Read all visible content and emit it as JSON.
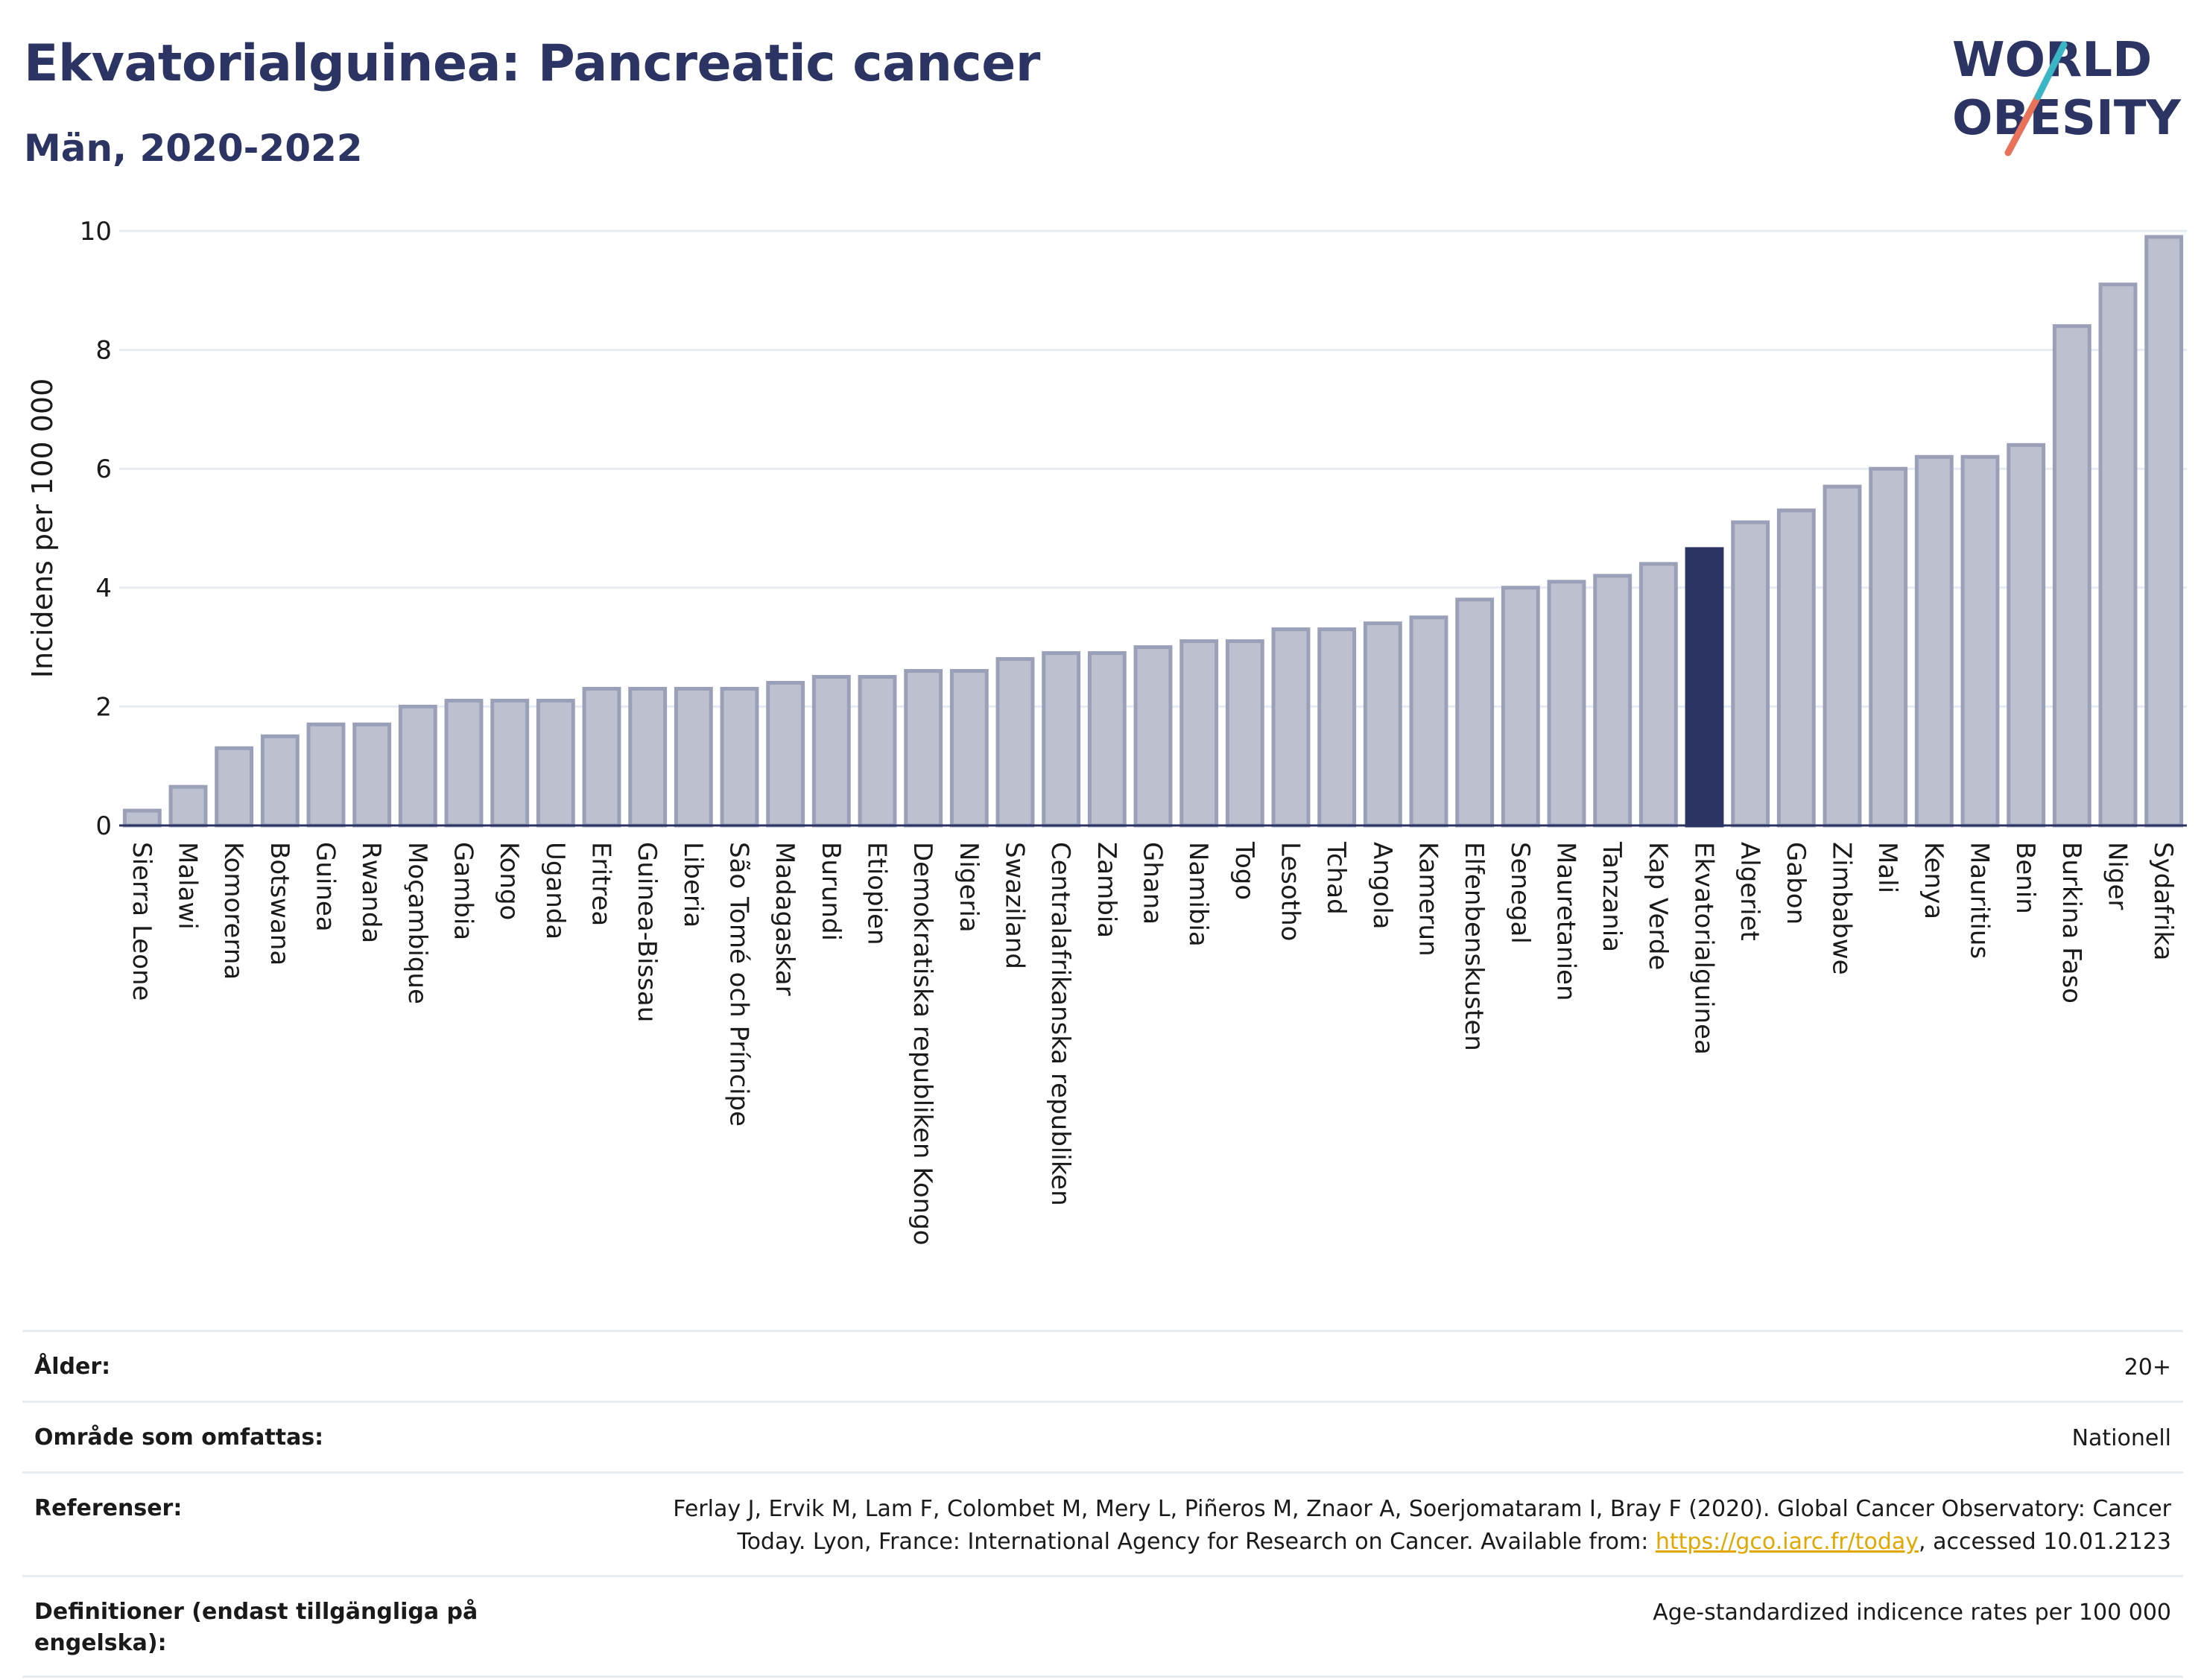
{
  "header": {
    "title": "Ekvatorialguinea: Pancreatic cancer",
    "subtitle": "Män, 2020-2022",
    "logo_line1": "WORLD",
    "logo_line2": "OBESITY"
  },
  "colors": {
    "bar_default": "#bcc0cf",
    "bar_border": "#9aa0b8",
    "bar_highlight": "#2b3462",
    "title": "#2b3462",
    "grid": "#e6ecf2"
  },
  "chart_data": {
    "type": "bar",
    "title": "Ekvatorialguinea: Pancreatic cancer",
    "subtitle": "Män, 2020-2022",
    "xlabel": "",
    "ylabel": "Incidens per 100 000",
    "ylim": [
      0,
      10
    ],
    "yticks": [
      0,
      2,
      4,
      6,
      8,
      10
    ],
    "grid": true,
    "highlight": "Ekvatorialguinea",
    "categories": [
      "Sierra Leone",
      "Malawi",
      "Komorerna",
      "Botswana",
      "Guinea",
      "Rwanda",
      "Moçambique",
      "Gambia",
      "Kongo",
      "Uganda",
      "Eritrea",
      "Guinea-Bissau",
      "Liberia",
      "São Tomé och Príncipe",
      "Madagaskar",
      "Burundi",
      "Etiopien",
      "Demokratiska republiken Kongo",
      "Nigeria",
      "Swaziland",
      "Centralafrikanska republiken",
      "Zambia",
      "Ghana",
      "Namibia",
      "Togo",
      "Lesotho",
      "Tchad",
      "Angola",
      "Kamerun",
      "Elfenbenskusten",
      "Senegal",
      "Mauretanien",
      "Tanzania",
      "Kap Verde",
      "Ekvatorialguinea",
      "Algeriet",
      "Gabon",
      "Zimbabwe",
      "Mali",
      "Kenya",
      "Mauritius",
      "Benin",
      "Burkina Faso",
      "Niger",
      "Sydafrika"
    ],
    "values": [
      0.25,
      0.65,
      1.3,
      1.5,
      1.7,
      1.7,
      2.0,
      2.1,
      2.1,
      2.1,
      2.3,
      2.3,
      2.3,
      2.3,
      2.4,
      2.5,
      2.5,
      2.6,
      2.6,
      2.8,
      2.9,
      2.9,
      3.0,
      3.1,
      3.1,
      3.3,
      3.3,
      3.4,
      3.5,
      3.8,
      4.0,
      4.1,
      4.2,
      4.4,
      4.65,
      5.1,
      5.3,
      5.7,
      6.0,
      6.2,
      6.2,
      6.4,
      8.4,
      9.1,
      9.9
    ]
  },
  "details": {
    "age_label": "Ålder:",
    "age_value": "20+",
    "area_label": "Område som omfattas:",
    "area_value": "Nationell",
    "refs_label": "Referenser:",
    "refs_line1": "Ferlay J, Ervik M, Lam F, Colombet M, Mery L, Piñeros M, Znaor A, Soerjomataram I, Bray F (2020). Global Cancer Observatory: Cancer",
    "refs_line2_prefix": "Today. Lyon, France: International Agency for Research on Cancer. Available from: ",
    "refs_link": "https://gco.iarc.fr/today",
    "refs_line2_suffix": ", accessed 10.01.2123",
    "defs_label": "Definitioner (endast tillgängliga på engelska):",
    "defs_value": "Age-standardized indicence rates per 100 000"
  }
}
